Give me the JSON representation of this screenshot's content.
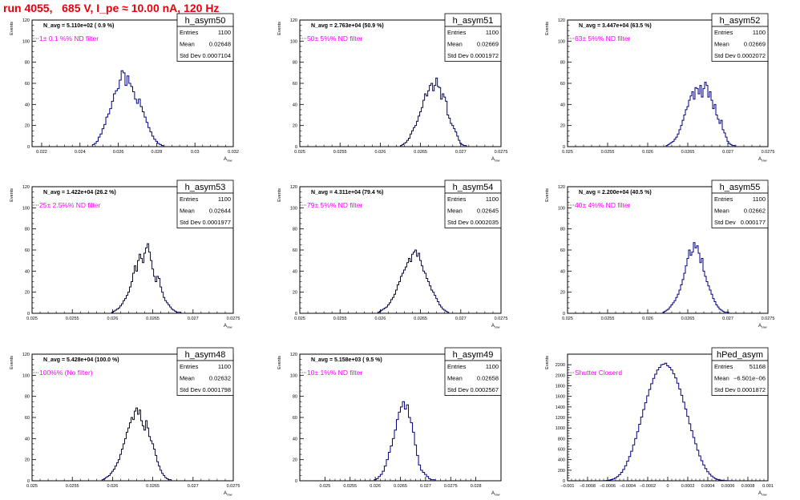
{
  "page": {
    "title": "run 4055,   685 V, I_pe ≈ 10.00 nA, 120 Hz"
  },
  "chart_data": [
    {
      "type": "bar",
      "id": "p1",
      "name": "h_asym50",
      "entries": "1100",
      "mean": "0.02648",
      "stddev": "0.0007104",
      "navg": "N_avg = 5.110e+02 ( 0.9 %)",
      "filter": "1± 0.1 %% ND filter",
      "xlim": [
        0.0215,
        0.032
      ],
      "ylim": [
        0,
        120
      ],
      "xticks": [
        "0.022",
        "0.024",
        "0.026",
        "0.028",
        "0.03",
        "0.032"
      ],
      "xtick_values": [
        0.022,
        0.024,
        0.026,
        0.028,
        0.03,
        0.032
      ],
      "yticks": [
        "0",
        "20",
        "40",
        "60",
        "80",
        "100",
        "120"
      ],
      "ylabel": "Events",
      "xlabel": "A",
      "bin_width": 0.0001,
      "x": [
        0.0247,
        0.0248,
        0.0249,
        0.025,
        0.0251,
        0.0252,
        0.0253,
        0.0254,
        0.0255,
        0.0256,
        0.0257,
        0.0258,
        0.0259,
        0.026,
        0.0261,
        0.0262,
        0.0263,
        0.0264,
        0.0265,
        0.0266,
        0.0267,
        0.0268,
        0.0269,
        0.027,
        0.0271,
        0.0272,
        0.0273,
        0.0274,
        0.0275,
        0.0276,
        0.0277,
        0.0278,
        0.0279,
        0.028,
        0.0281,
        0.0282,
        0.0283
      ],
      "values": [
        2,
        3,
        5,
        9,
        12,
        17,
        21,
        28,
        31,
        36,
        43,
        50,
        53,
        55,
        63,
        72,
        70,
        58,
        67,
        60,
        57,
        52,
        45,
        41,
        45,
        38,
        33,
        28,
        23,
        18,
        14,
        10,
        7,
        5,
        3,
        2,
        1
      ]
    },
    {
      "type": "bar",
      "id": "p2",
      "name": "h_asym51",
      "entries": "1100",
      "mean": "0.02669",
      "stddev": "0.0001972",
      "navg": "N_avg = 2.763e+04 (50.9 %)",
      "filter": "50± 5%% ND filter",
      "xlim": [
        0.025,
        0.0275
      ],
      "ylim": [
        0,
        120
      ],
      "xticks": [
        "0.025",
        "0.0255",
        "0.026",
        "0.0265",
        "0.027",
        "0.0275"
      ],
      "xtick_values": [
        0.025,
        0.0255,
        0.026,
        0.0265,
        0.027,
        0.0275
      ],
      "yticks": [
        "0",
        "20",
        "40",
        "60",
        "80",
        "100",
        "120"
      ],
      "ylabel": "Events",
      "xlabel": "A",
      "bin_width": 2e-05,
      "x": [
        0.02626,
        0.02628,
        0.0263,
        0.02632,
        0.02634,
        0.02636,
        0.02638,
        0.0264,
        0.02642,
        0.02644,
        0.02646,
        0.02648,
        0.0265,
        0.02652,
        0.02654,
        0.02656,
        0.02658,
        0.0266,
        0.02662,
        0.02664,
        0.02666,
        0.02668,
        0.0267,
        0.02672,
        0.02674,
        0.02676,
        0.02678,
        0.0268,
        0.02682,
        0.02684,
        0.02686,
        0.02688,
        0.0269,
        0.02692,
        0.02694,
        0.02696,
        0.02698,
        0.027,
        0.02702,
        0.02704,
        0.02706
      ],
      "values": [
        1,
        2,
        3,
        4,
        6,
        8,
        12,
        15,
        18,
        20,
        24,
        29,
        33,
        37,
        44,
        50,
        48,
        53,
        58,
        60,
        53,
        58,
        65,
        57,
        56,
        45,
        50,
        47,
        43,
        30,
        27,
        22,
        20,
        17,
        14,
        10,
        6,
        3,
        2,
        1,
        1
      ]
    },
    {
      "type": "bar",
      "id": "p3",
      "name": "h_asym52",
      "entries": "1100",
      "mean": "0.02669",
      "stddev": "0.0002072",
      "navg": "N_avg = 3.447e+04 (63.5 %)",
      "filter": "63± 5%% ND filter",
      "xlim": [
        0.025,
        0.0275
      ],
      "ylim": [
        0,
        120
      ],
      "xticks": [
        "0.025",
        "0.0255",
        "0.026",
        "0.0265",
        "0.027",
        "0.0275"
      ],
      "xtick_values": [
        0.025,
        0.0255,
        0.026,
        0.0265,
        0.027,
        0.0275
      ],
      "yticks": [
        "0",
        "20",
        "40",
        "60",
        "80",
        "100",
        "120"
      ],
      "ylabel": "Events",
      "xlabel": "A",
      "bin_width": 2e-05,
      "x": [
        0.02624,
        0.02626,
        0.02628,
        0.0263,
        0.02632,
        0.02634,
        0.02636,
        0.02638,
        0.0264,
        0.02642,
        0.02644,
        0.02646,
        0.02648,
        0.0265,
        0.02652,
        0.02654,
        0.02656,
        0.02658,
        0.0266,
        0.02662,
        0.02664,
        0.02666,
        0.02668,
        0.0267,
        0.02672,
        0.02674,
        0.02676,
        0.02678,
        0.0268,
        0.02682,
        0.02684,
        0.02686,
        0.02688,
        0.0269,
        0.02692,
        0.02694,
        0.02696,
        0.02698,
        0.027,
        0.02702,
        0.02704,
        0.02706,
        0.02708
      ],
      "values": [
        1,
        2,
        3,
        4,
        5,
        7,
        9,
        12,
        16,
        20,
        25,
        30,
        35,
        38,
        44,
        48,
        52,
        45,
        56,
        55,
        50,
        58,
        47,
        55,
        61,
        58,
        47,
        52,
        44,
        36,
        40,
        30,
        26,
        22,
        25,
        16,
        13,
        9,
        5,
        3,
        2,
        1,
        1
      ]
    },
    {
      "type": "bar",
      "id": "p4",
      "name": "h_asym53",
      "entries": "1100",
      "mean": "0.02644",
      "stddev": "0.0001977",
      "navg": "N_avg = 1.422e+04 (26.2 %)",
      "filter": "25± 2.5%% ND filter",
      "xlim": [
        0.025,
        0.0275
      ],
      "ylim": [
        0,
        120
      ],
      "xticks": [
        "0.025",
        "0.0255",
        "0.026",
        "0.0265",
        "0.027",
        "0.0275"
      ],
      "xtick_values": [
        0.025,
        0.0255,
        0.026,
        0.0265,
        0.027,
        0.0275
      ],
      "yticks": [
        "0",
        "20",
        "40",
        "60",
        "80",
        "100",
        "120"
      ],
      "ylabel": "Events",
      "xlabel": "A",
      "bin_width": 2e-05,
      "x": [
        0.026,
        0.02602,
        0.02604,
        0.02606,
        0.02608,
        0.0261,
        0.02612,
        0.02614,
        0.02616,
        0.02618,
        0.0262,
        0.02622,
        0.02624,
        0.02626,
        0.02628,
        0.0263,
        0.02632,
        0.02634,
        0.02636,
        0.02638,
        0.0264,
        0.02642,
        0.02644,
        0.02646,
        0.02648,
        0.0265,
        0.02652,
        0.02654,
        0.02656,
        0.02658,
        0.0266,
        0.02662,
        0.02664,
        0.02666,
        0.02668,
        0.0267,
        0.02672,
        0.02674,
        0.02676,
        0.02678,
        0.0268,
        0.02682,
        0.02684
      ],
      "values": [
        1,
        2,
        3,
        4,
        5,
        7,
        9,
        12,
        14,
        17,
        20,
        25,
        30,
        38,
        45,
        40,
        50,
        56,
        52,
        48,
        57,
        62,
        66,
        58,
        50,
        42,
        35,
        30,
        35,
        33,
        25,
        20,
        15,
        12,
        10,
        8,
        6,
        4,
        3,
        2,
        1,
        1,
        1
      ]
    },
    {
      "type": "bar",
      "id": "p5",
      "name": "h_asym54",
      "entries": "1100",
      "mean": "0.02645",
      "stddev": "0.0002035",
      "navg": "N_avg = 4.311e+04 (79.4 %)",
      "filter": "79± 5%% ND filter",
      "xlim": [
        0.025,
        0.0275
      ],
      "ylim": [
        0,
        120
      ],
      "xticks": [
        "0.025",
        "0.0255",
        "0.026",
        "0.0265",
        "0.027",
        "0.0275"
      ],
      "xtick_values": [
        0.025,
        0.0255,
        0.026,
        0.0265,
        0.027,
        0.0275
      ],
      "yticks": [
        "0",
        "20",
        "40",
        "60",
        "80",
        "100",
        "120"
      ],
      "ylabel": "Events",
      "xlabel": "A",
      "bin_width": 2e-05,
      "x": [
        0.02598,
        0.026,
        0.02602,
        0.02604,
        0.02606,
        0.02608,
        0.0261,
        0.02612,
        0.02614,
        0.02616,
        0.02618,
        0.0262,
        0.02622,
        0.02624,
        0.02626,
        0.02628,
        0.0263,
        0.02632,
        0.02634,
        0.02636,
        0.02638,
        0.0264,
        0.02642,
        0.02644,
        0.02646,
        0.02648,
        0.0265,
        0.02652,
        0.02654,
        0.02656,
        0.02658,
        0.0266,
        0.02662,
        0.02664,
        0.02666,
        0.02668,
        0.0267,
        0.02672,
        0.02674,
        0.02676,
        0.02678,
        0.0268,
        0.02682,
        0.02684
      ],
      "values": [
        1,
        2,
        3,
        4,
        5,
        6,
        8,
        10,
        13,
        15,
        18,
        22,
        27,
        30,
        35,
        38,
        41,
        44,
        48,
        52,
        49,
        56,
        58,
        60,
        54,
        57,
        50,
        45,
        40,
        38,
        33,
        30,
        26,
        22,
        20,
        17,
        14,
        11,
        8,
        6,
        4,
        3,
        2,
        1
      ]
    },
    {
      "type": "bar",
      "id": "p6",
      "name": "h_asym55",
      "entries": "1100",
      "mean": "0.02662",
      "stddev": "0.000177",
      "navg": "N_avg = 2.200e+04 (40.5 %)",
      "filter": "40± 4%% ND filter",
      "xlim": [
        0.025,
        0.0275
      ],
      "ylim": [
        0,
        120
      ],
      "xticks": [
        "0.025",
        "0.0255",
        "0.026",
        "0.0265",
        "0.027",
        "0.0275"
      ],
      "xtick_values": [
        0.025,
        0.0255,
        0.026,
        0.0265,
        0.027,
        0.0275
      ],
      "yticks": [
        "0",
        "20",
        "40",
        "60",
        "80",
        "100",
        "120"
      ],
      "ylabel": "Events",
      "xlabel": "A",
      "bin_width": 2e-05,
      "x": [
        0.0262,
        0.02622,
        0.02624,
        0.02626,
        0.02628,
        0.0263,
        0.02632,
        0.02634,
        0.02636,
        0.02638,
        0.0264,
        0.02642,
        0.02644,
        0.02646,
        0.02648,
        0.0265,
        0.02652,
        0.02654,
        0.02656,
        0.02658,
        0.0266,
        0.02662,
        0.02664,
        0.02666,
        0.02668,
        0.0267,
        0.02672,
        0.02674,
        0.02676,
        0.02678,
        0.0268,
        0.02682,
        0.02684,
        0.02686,
        0.02688,
        0.0269,
        0.02692,
        0.02694,
        0.02696,
        0.02698,
        0.027
      ],
      "values": [
        1,
        2,
        3,
        4,
        6,
        8,
        10,
        12,
        15,
        18,
        22,
        27,
        32,
        38,
        45,
        52,
        60,
        55,
        58,
        67,
        62,
        64,
        57,
        48,
        52,
        40,
        35,
        30,
        26,
        22,
        18,
        14,
        11,
        8,
        6,
        4,
        3,
        2,
        1,
        1,
        1
      ]
    },
    {
      "type": "bar",
      "id": "p7",
      "name": "h_asym48",
      "entries": "1100",
      "mean": "0.02632",
      "stddev": "0.0001798",
      "navg": "N_avg = 5.428e+04 (100.0 %)",
      "filter": "100%% (No filter)",
      "xlim": [
        0.025,
        0.0275
      ],
      "ylim": [
        0,
        120
      ],
      "xticks": [
        "0.025",
        "0.0255",
        "0.026",
        "0.0265",
        "0.027",
        "0.0275"
      ],
      "xtick_values": [
        0.025,
        0.0255,
        0.026,
        0.0265,
        0.027,
        0.0275
      ],
      "yticks": [
        "0",
        "20",
        "40",
        "60",
        "80",
        "100",
        "120"
      ],
      "ylabel": "Events",
      "xlabel": "A",
      "bin_width": 2e-05,
      "x": [
        0.02588,
        0.0259,
        0.02592,
        0.02594,
        0.02596,
        0.02598,
        0.026,
        0.02602,
        0.02604,
        0.02606,
        0.02608,
        0.0261,
        0.02612,
        0.02614,
        0.02616,
        0.02618,
        0.0262,
        0.02622,
        0.02624,
        0.02626,
        0.02628,
        0.0263,
        0.02632,
        0.02634,
        0.02636,
        0.02638,
        0.0264,
        0.02642,
        0.02644,
        0.02646,
        0.02648,
        0.0265,
        0.02652,
        0.02654,
        0.02656,
        0.02658,
        0.0266,
        0.02662,
        0.02664,
        0.02666,
        0.02668,
        0.0267,
        0.02672
      ],
      "values": [
        1,
        2,
        3,
        4,
        5,
        7,
        9,
        11,
        14,
        17,
        20,
        25,
        30,
        35,
        40,
        46,
        50,
        55,
        60,
        58,
        66,
        69,
        63,
        67,
        57,
        52,
        48,
        57,
        50,
        42,
        38,
        35,
        30,
        24,
        18,
        14,
        10,
        7,
        5,
        3,
        2,
        1,
        1
      ]
    },
    {
      "type": "bar",
      "id": "p8",
      "name": "h_asym49",
      "entries": "1100",
      "mean": "0.02658",
      "stddev": "0.0002567",
      "navg": "N_avg = 5.158e+03 ( 9.5 %)",
      "filter": "10± 1%% ND filter",
      "xlim": [
        0.0245,
        0.0285
      ],
      "ylim": [
        0,
        120
      ],
      "xticks": [
        "0.025",
        "0.0255",
        "0.026",
        "0.0265",
        "0.027",
        "0.0275",
        "0.028"
      ],
      "xtick_values": [
        0.025,
        0.0255,
        0.026,
        0.0265,
        0.027,
        0.0275,
        0.028
      ],
      "yticks": [
        "0",
        "20",
        "40",
        "60",
        "80",
        "100",
        "120"
      ],
      "ylabel": "Events",
      "xlabel": "A",
      "bin_width": 4e-05,
      "x": [
        0.026,
        0.02604,
        0.02608,
        0.02612,
        0.02616,
        0.0262,
        0.02624,
        0.02628,
        0.02632,
        0.02636,
        0.0264,
        0.02644,
        0.02648,
        0.02652,
        0.02656,
        0.0266,
        0.02664,
        0.02668,
        0.02672,
        0.02676,
        0.0268,
        0.02684,
        0.02688,
        0.02692,
        0.02696,
        0.027,
        0.02704,
        0.02708,
        0.02712,
        0.02716
      ],
      "values": [
        1,
        2,
        4,
        6,
        9,
        14,
        20,
        27,
        33,
        40,
        48,
        58,
        65,
        70,
        75,
        68,
        72,
        60,
        55,
        46,
        34,
        24,
        15,
        10,
        8,
        6,
        4,
        2,
        1,
        1
      ]
    },
    {
      "type": "bar",
      "id": "p9",
      "name": "hPed_asym",
      "entries": "51168",
      "mean": "−6.501e−06",
      "stddev": "0.0001872",
      "navg": "",
      "filter": "Shutter Closerd",
      "xlim": [
        -0.001,
        0.001
      ],
      "ylim": [
        0,
        2400
      ],
      "xticks": [
        "−0.001",
        "−0.0008",
        "−0.0006",
        "−0.0004",
        "−0.0002",
        "0",
        "0.0002",
        "0.0004",
        "0.0006",
        "0.0008",
        "0.001"
      ],
      "xtick_values": [
        -0.001,
        -0.0008,
        -0.0006,
        -0.0004,
        -0.0002,
        0,
        0.0002,
        0.0004,
        0.0006,
        0.0008,
        0.001
      ],
      "yticks": [
        "0",
        "200",
        "400",
        "600",
        "800",
        "1000",
        "1200",
        "1400",
        "1600",
        "1800",
        "2000",
        "2200"
      ],
      "ylabel": "Events",
      "xlabel": "A",
      "bin_width": 2e-05,
      "x": [
        -0.00064,
        -0.00062,
        -0.0006,
        -0.00058,
        -0.00056,
        -0.00054,
        -0.00052,
        -0.0005,
        -0.00048,
        -0.00046,
        -0.00044,
        -0.00042,
        -0.0004,
        -0.00038,
        -0.00036,
        -0.00034,
        -0.00032,
        -0.0003,
        -0.00028,
        -0.00026,
        -0.00024,
        -0.00022,
        -0.0002,
        -0.00018,
        -0.00016,
        -0.00014,
        -0.00012,
        -0.0001,
        -8e-05,
        -6e-05,
        -4e-05,
        -2e-05,
        0.0,
        2e-05,
        4e-05,
        6e-05,
        8e-05,
        0.0001,
        0.00012,
        0.00014,
        0.00016,
        0.00018,
        0.0002,
        0.00022,
        0.00024,
        0.00026,
        0.00028,
        0.0003,
        0.00032,
        0.00034,
        0.00036,
        0.00038,
        0.0004,
        0.00042,
        0.00044,
        0.00046,
        0.00048,
        0.0005,
        0.00052,
        0.00054,
        0.00056,
        0.00058,
        0.0006,
        0.00062,
        0.00064
      ],
      "values": [
        2,
        4,
        8,
        14,
        22,
        35,
        55,
        80,
        115,
        160,
        215,
        285,
        370,
        460,
        560,
        680,
        800,
        930,
        1070,
        1210,
        1350,
        1480,
        1610,
        1730,
        1840,
        1940,
        2020,
        2100,
        2150,
        2200,
        2210,
        2230,
        2180,
        2150,
        2100,
        2030,
        1950,
        1850,
        1740,
        1620,
        1490,
        1360,
        1220,
        1080,
        950,
        820,
        700,
        580,
        470,
        380,
        300,
        230,
        170,
        125,
        90,
        60,
        40,
        25,
        15,
        9,
        5,
        3,
        2,
        1,
        1
      ]
    }
  ]
}
